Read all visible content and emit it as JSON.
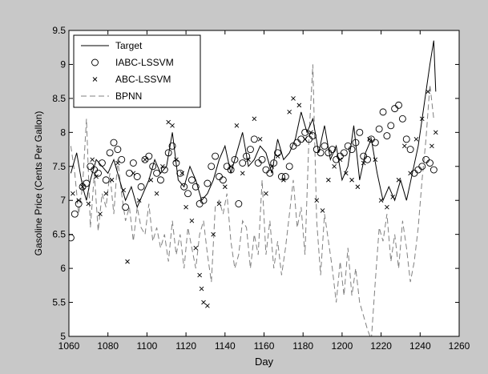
{
  "chart_data": {
    "type": "line",
    "xlabel": "Day",
    "ylabel": "Gasoline Price (Cents Per Gallon)",
    "xlim": [
      1060,
      1260
    ],
    "ylim": [
      5,
      9.5
    ],
    "xticks": [
      1060,
      1080,
      1100,
      1120,
      1140,
      1160,
      1180,
      1200,
      1220,
      1240,
      1260
    ],
    "yticks": [
      "5",
      "5.5",
      "6",
      "6.5",
      "7",
      "7.5",
      "8",
      "8.5",
      "9",
      "9.5"
    ],
    "grid": false,
    "legend_position": "top-left",
    "series": [
      {
        "name": "Target",
        "style": "solid-line",
        "color": "#000000",
        "x": [
          1061,
          1064,
          1067,
          1069,
          1071,
          1074,
          1077,
          1080,
          1083,
          1086,
          1089,
          1092,
          1095,
          1098,
          1101,
          1104,
          1107,
          1110,
          1113,
          1116,
          1119,
          1122,
          1125,
          1128,
          1131,
          1134,
          1137,
          1140,
          1143,
          1146,
          1149,
          1152,
          1155,
          1158,
          1161,
          1164,
          1167,
          1170,
          1173,
          1176,
          1179,
          1182,
          1185,
          1188,
          1191,
          1194,
          1197,
          1200,
          1203,
          1206,
          1209,
          1212,
          1215,
          1218,
          1221,
          1224,
          1227,
          1230,
          1233,
          1236,
          1239,
          1242,
          1245,
          1247,
          1248
        ],
        "values": [
          7.4,
          7.7,
          7.2,
          7.0,
          7.3,
          7.6,
          7.5,
          7.4,
          7.6,
          7.3,
          7.0,
          7.2,
          6.9,
          7.1,
          7.3,
          7.6,
          7.4,
          7.5,
          8.0,
          7.3,
          7.2,
          7.5,
          7.3,
          7.0,
          7.1,
          7.3,
          7.6,
          7.8,
          7.4,
          7.7,
          8.0,
          7.5,
          7.6,
          7.8,
          7.7,
          7.4,
          7.9,
          7.6,
          7.7,
          7.9,
          8.3,
          8.0,
          8.2,
          7.7,
          8.1,
          7.6,
          7.8,
          7.3,
          7.5,
          8.1,
          7.3,
          7.7,
          7.9,
          7.4,
          7.0,
          7.2,
          7.0,
          7.3,
          7.0,
          7.4,
          7.8,
          8.4,
          9.0,
          9.35,
          8.6
        ]
      },
      {
        "name": "IABC-LSSVM",
        "style": "circle-markers",
        "color": "#000000",
        "x": [
          1061,
          1063,
          1065,
          1067,
          1069,
          1071,
          1073,
          1075,
          1077,
          1079,
          1081,
          1083,
          1085,
          1087,
          1089,
          1091,
          1093,
          1095,
          1097,
          1099,
          1101,
          1103,
          1105,
          1107,
          1109,
          1111,
          1113,
          1115,
          1117,
          1119,
          1121,
          1123,
          1125,
          1127,
          1129,
          1131,
          1133,
          1135,
          1137,
          1139,
          1141,
          1143,
          1145,
          1147,
          1149,
          1151,
          1153,
          1155,
          1157,
          1159,
          1161,
          1163,
          1165,
          1167,
          1169,
          1171,
          1173,
          1175,
          1177,
          1179,
          1181,
          1183,
          1185,
          1187,
          1189,
          1191,
          1193,
          1195,
          1197,
          1199,
          1201,
          1203,
          1205,
          1207,
          1209,
          1211,
          1213,
          1215,
          1217,
          1219,
          1221,
          1223,
          1225,
          1227,
          1229,
          1231,
          1233,
          1235,
          1237,
          1239,
          1241,
          1243,
          1245,
          1247
        ],
        "values": [
          6.45,
          6.8,
          6.95,
          7.2,
          7.25,
          7.5,
          7.45,
          7.4,
          7.55,
          7.3,
          7.7,
          7.85,
          7.75,
          7.6,
          6.9,
          7.4,
          7.55,
          7.35,
          7.2,
          7.6,
          7.65,
          7.5,
          7.4,
          7.3,
          7.45,
          7.7,
          7.8,
          7.55,
          7.4,
          7.2,
          7.1,
          7.3,
          7.2,
          6.95,
          7.0,
          7.25,
          7.5,
          7.65,
          7.35,
          7.3,
          7.5,
          7.45,
          7.6,
          6.95,
          7.55,
          7.65,
          7.75,
          7.9,
          7.55,
          7.6,
          7.45,
          7.4,
          7.55,
          7.7,
          7.35,
          7.35,
          7.5,
          7.8,
          7.85,
          7.9,
          8.0,
          7.9,
          7.95,
          7.75,
          7.7,
          7.8,
          7.7,
          7.75,
          7.6,
          7.65,
          7.7,
          7.8,
          7.75,
          7.85,
          8.0,
          7.65,
          7.6,
          7.9,
          7.85,
          8.05,
          8.3,
          7.95,
          8.1,
          8.35,
          8.4,
          8.2,
          7.9,
          7.75,
          7.4,
          7.45,
          7.5,
          7.6,
          7.55,
          7.45
        ]
      },
      {
        "name": "ABC-LSSVM",
        "style": "x-markers",
        "color": "#000000",
        "x": [
          1062,
          1065,
          1067,
          1070,
          1072,
          1074,
          1076,
          1079,
          1082,
          1085,
          1088,
          1090,
          1093,
          1096,
          1099,
          1102,
          1105,
          1108,
          1111,
          1113,
          1115,
          1118,
          1120,
          1123,
          1125,
          1127,
          1128,
          1129,
          1131,
          1134,
          1137,
          1140,
          1143,
          1146,
          1149,
          1152,
          1155,
          1158,
          1161,
          1164,
          1167,
          1170,
          1173,
          1175,
          1178,
          1181,
          1184,
          1187,
          1190,
          1193,
          1196,
          1199,
          1202,
          1205,
          1208,
          1211,
          1214,
          1217,
          1220,
          1223,
          1226,
          1229,
          1232,
          1235,
          1238,
          1241,
          1244,
          1246,
          1248
        ],
        "values": [
          7.1,
          7.0,
          7.2,
          6.95,
          7.6,
          7.35,
          6.8,
          7.1,
          7.3,
          7.55,
          7.15,
          6.1,
          7.4,
          7.0,
          7.6,
          7.3,
          7.1,
          7.5,
          8.15,
          8.1,
          7.6,
          7.4,
          6.9,
          6.7,
          6.3,
          5.9,
          5.7,
          5.5,
          5.45,
          6.5,
          6.95,
          7.2,
          7.5,
          8.1,
          7.4,
          7.6,
          8.2,
          7.9,
          7.1,
          7.5,
          7.65,
          7.3,
          8.3,
          8.5,
          8.4,
          7.9,
          8.0,
          7.0,
          6.85,
          7.3,
          7.5,
          7.6,
          7.4,
          7.3,
          7.2,
          7.55,
          7.9,
          7.6,
          7.0,
          6.9,
          7.05,
          7.3,
          7.8,
          7.4,
          7.9,
          8.2,
          8.6,
          7.8,
          8.0
        ]
      },
      {
        "name": "BPNN",
        "style": "dashed-line",
        "color": "#808080",
        "x": [
          1061,
          1063,
          1065,
          1067,
          1069,
          1071,
          1073,
          1075,
          1077,
          1079,
          1081,
          1083,
          1085,
          1087,
          1089,
          1091,
          1093,
          1095,
          1097,
          1099,
          1101,
          1103,
          1105,
          1107,
          1109,
          1111,
          1113,
          1115,
          1117,
          1119,
          1121,
          1123,
          1125,
          1127,
          1129,
          1131,
          1133,
          1135,
          1137,
          1139,
          1141,
          1143,
          1145,
          1147,
          1149,
          1151,
          1153,
          1155,
          1157,
          1159,
          1161,
          1163,
          1165,
          1167,
          1169,
          1171,
          1173,
          1175,
          1177,
          1179,
          1181,
          1183,
          1185,
          1187,
          1189,
          1191,
          1193,
          1195,
          1197,
          1199,
          1201,
          1203,
          1205,
          1207,
          1209,
          1211,
          1213,
          1215,
          1217,
          1219,
          1221,
          1223,
          1225,
          1227,
          1229,
          1231,
          1233,
          1235,
          1237,
          1239,
          1241,
          1243,
          1245,
          1247
        ],
        "values": [
          7.8,
          7.4,
          6.8,
          7.2,
          8.2,
          6.6,
          7.4,
          6.55,
          7.1,
          6.9,
          7.4,
          6.8,
          7.6,
          7.1,
          6.7,
          6.9,
          6.4,
          6.9,
          6.6,
          6.5,
          6.95,
          6.4,
          6.6,
          6.3,
          6.5,
          6.1,
          6.7,
          6.2,
          6.5,
          6.0,
          6.6,
          6.3,
          6.0,
          6.5,
          6.7,
          6.2,
          5.8,
          6.9,
          7.0,
          6.8,
          7.1,
          6.4,
          6.0,
          6.2,
          6.7,
          6.6,
          6.0,
          6.5,
          6.2,
          7.3,
          6.2,
          6.7,
          6.0,
          6.4,
          5.9,
          6.3,
          6.8,
          7.3,
          6.6,
          6.9,
          6.2,
          7.9,
          9.0,
          6.7,
          5.9,
          6.8,
          6.4,
          6.0,
          5.5,
          6.1,
          5.6,
          6.3,
          5.6,
          6.0,
          5.5,
          5.3,
          5.1,
          4.95,
          5.8,
          6.6,
          6.4,
          6.8,
          6.1,
          6.5,
          6.0,
          6.7,
          6.3,
          5.8,
          6.1,
          6.6,
          7.3,
          7.9,
          8.7,
          8.2
        ]
      }
    ]
  }
}
